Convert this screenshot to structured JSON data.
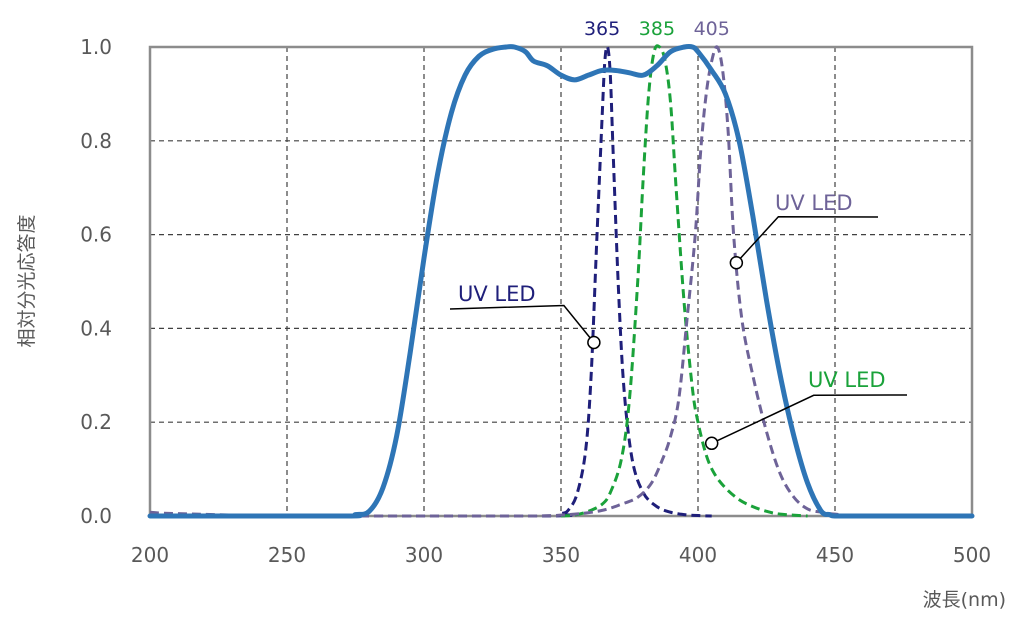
{
  "chart_data": {
    "type": "line",
    "xlabel": "波長(nm)",
    "ylabel": "相対分光応答度",
    "xlim": [
      200,
      500
    ],
    "ylim": [
      0,
      1.0
    ],
    "x_ticks": [
      "200",
      "250",
      "300",
      "350",
      "400",
      "450",
      "500"
    ],
    "y_ticks": [
      "0.0",
      "0.2",
      "0.4",
      "0.6",
      "0.8",
      "1.0"
    ],
    "grid": true,
    "colors": {
      "sensor": "#2e75b6",
      "led365": "#1f1f7a",
      "led385": "#1aa23a",
      "led405": "#6e6398",
      "grid": "#404040",
      "frame": "#8c8c8c",
      "text": "#595959"
    },
    "peak_labels": [
      {
        "text": "365",
        "x": 365,
        "color": "#1f1f7a"
      },
      {
        "text": "385",
        "x": 385,
        "color": "#1aa23a"
      },
      {
        "text": "405",
        "x": 405,
        "color": "#6e6398"
      }
    ],
    "annotations": [
      {
        "text": "UV LED",
        "x": 362,
        "y": 0.37,
        "color": "#1f1f7a"
      },
      {
        "text": "UV LED",
        "x": 414,
        "y": 0.54,
        "color": "#6e6398"
      },
      {
        "text": "UV LED",
        "x": 405,
        "y": 0.155,
        "color": "#1aa23a"
      }
    ],
    "series": [
      {
        "color": "#2e75b6",
        "style": "solid",
        "x": [
          200,
          270,
          275,
          280,
          285,
          290,
          295,
          300,
          305,
          310,
          315,
          320,
          325,
          330,
          333,
          337,
          340,
          345,
          350,
          355,
          360,
          365,
          370,
          375,
          380,
          385,
          390,
          395,
          398,
          400,
          405,
          410,
          415,
          420,
          425,
          430,
          435,
          440,
          445,
          448,
          450,
          460,
          470,
          500
        ],
        "y": [
          0.0,
          0.0,
          0.003,
          0.01,
          0.06,
          0.17,
          0.35,
          0.55,
          0.73,
          0.86,
          0.94,
          0.98,
          0.995,
          1.0,
          1.0,
          0.99,
          0.97,
          0.96,
          0.94,
          0.93,
          0.94,
          0.95,
          0.95,
          0.945,
          0.94,
          0.96,
          0.99,
          1.0,
          1.0,
          0.99,
          0.95,
          0.9,
          0.8,
          0.64,
          0.46,
          0.3,
          0.17,
          0.07,
          0.01,
          0.003,
          0.0,
          0.0,
          0.0,
          0.0
        ]
      },
      {
        "color": "#1f1f7a",
        "style": "dashed",
        "x": [
          200,
          340,
          350,
          353,
          356,
          359,
          361,
          363,
          365,
          366,
          367,
          368,
          369,
          371,
          373,
          376,
          380,
          385,
          390,
          395,
          400,
          405
        ],
        "y": [
          0.0,
          0.0,
          0.005,
          0.015,
          0.05,
          0.14,
          0.3,
          0.58,
          0.85,
          0.97,
          1.0,
          0.94,
          0.78,
          0.48,
          0.27,
          0.12,
          0.05,
          0.02,
          0.008,
          0.003,
          0.001,
          0.0
        ]
      },
      {
        "color": "#1aa23a",
        "style": "dashed",
        "x": [
          350,
          355,
          360,
          365,
          368,
          372,
          375,
          378,
          380,
          382,
          384,
          386,
          388,
          390,
          392,
          395,
          398,
          400,
          403,
          406,
          410,
          415,
          420,
          425,
          430,
          440
        ],
        "y": [
          0.0,
          0.002,
          0.01,
          0.025,
          0.05,
          0.12,
          0.25,
          0.5,
          0.72,
          0.9,
          0.99,
          1.0,
          0.97,
          0.88,
          0.7,
          0.45,
          0.27,
          0.2,
          0.13,
          0.09,
          0.06,
          0.035,
          0.02,
          0.01,
          0.004,
          0.0
        ]
      },
      {
        "color": "#6e6398",
        "style": "dashed",
        "x": [
          200,
          210,
          250,
          300,
          340,
          355,
          365,
          372,
          378,
          383,
          387,
          390,
          393,
          396,
          399,
          401,
          403,
          405,
          407,
          409,
          411,
          413,
          416,
          420,
          425,
          430,
          435,
          440,
          445,
          450,
          460,
          500
        ],
        "y": [
          0.008,
          0.005,
          0.0,
          0.0,
          0.0,
          0.004,
          0.012,
          0.025,
          0.04,
          0.07,
          0.12,
          0.17,
          0.25,
          0.42,
          0.6,
          0.78,
          0.9,
          0.97,
          1.0,
          0.95,
          0.82,
          0.6,
          0.42,
          0.3,
          0.18,
          0.09,
          0.04,
          0.015,
          0.008,
          0.004,
          0.001,
          0.0
        ]
      }
    ]
  }
}
